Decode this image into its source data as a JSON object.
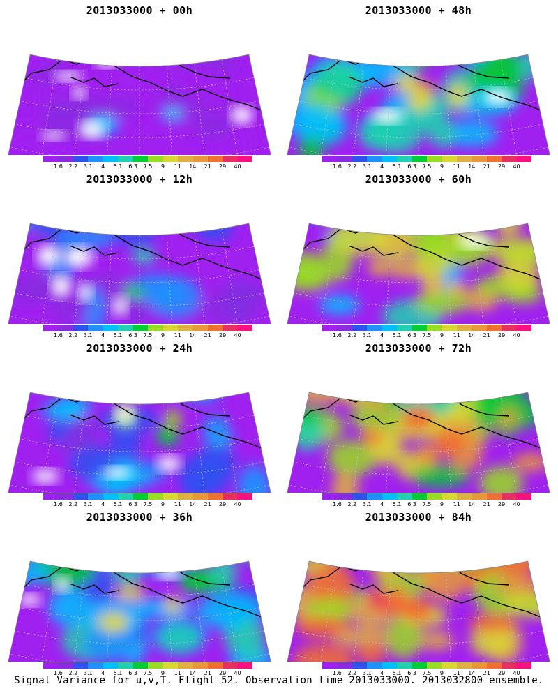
{
  "footer": "Signal Variance for u,v,T. Flight 52. Observation time 2013033000. 2013032800 ensemble.",
  "colorbar": {
    "colors": [
      "#a020f0",
      "#8a2be2",
      "#3050f0",
      "#1e90ff",
      "#00bfff",
      "#20d0b0",
      "#00cc33",
      "#99dd22",
      "#d8d830",
      "#e0b040",
      "#e89838",
      "#f07030",
      "#e83060",
      "#ff1080"
    ],
    "labels": [
      "1.6",
      "2.2",
      "3.1",
      "4",
      "5.1",
      "6.3",
      "7.5",
      "9",
      "11",
      "14",
      "21",
      "29",
      "40"
    ]
  },
  "panels": [
    {
      "title": "2013033000 + 00h",
      "forecast_hour": 0
    },
    {
      "title": "2013033000 + 48h",
      "forecast_hour": 48
    },
    {
      "title": "2013033000 + 12h",
      "forecast_hour": 12
    },
    {
      "title": "2013033000 + 60h",
      "forecast_hour": 60
    },
    {
      "title": "2013033000 + 24h",
      "forecast_hour": 24
    },
    {
      "title": "2013033000 + 72h",
      "forecast_hour": 72
    },
    {
      "title": "2013033000 + 36h",
      "forecast_hour": 36
    },
    {
      "title": "2013033000 + 84h",
      "forecast_hour": 84
    }
  ]
}
